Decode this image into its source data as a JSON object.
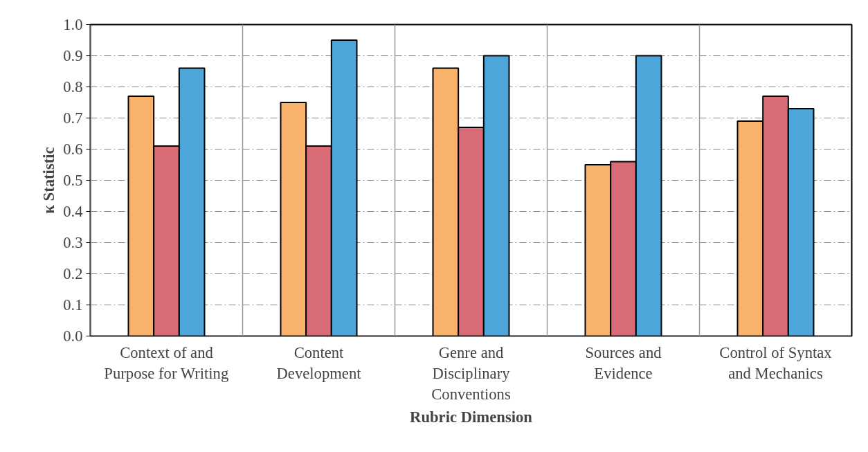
{
  "chart_data": {
    "type": "bar",
    "xlabel": "Rubric Dimension",
    "ylabel": "κ Statistic",
    "categories": [
      "Context of and\nPurpose for Writing",
      "Content\nDevelopment",
      "Genre and\nDisciplinary\nConventions",
      "Sources and\nEvidence",
      "Control of Syntax\nand Mechanics"
    ],
    "series": [
      {
        "color": "#f9b26b",
        "values": [
          0.77,
          0.75,
          0.86,
          0.55,
          0.69
        ]
      },
      {
        "color": "#d96b76",
        "values": [
          0.61,
          0.61,
          0.67,
          0.56,
          0.77
        ]
      },
      {
        "color": "#4ea5d9",
        "values": [
          0.86,
          0.95,
          0.9,
          0.9,
          0.73
        ]
      }
    ],
    "ylim": [
      0,
      1.0
    ],
    "yticks": [
      {
        "value": 0,
        "label": "0.0"
      },
      0.1,
      0.2,
      0.3,
      0.4,
      0.5,
      0.6,
      0.7,
      0.8,
      0.9,
      {
        "value": 1.0,
        "label": "1.0"
      }
    ],
    "grid": true
  }
}
